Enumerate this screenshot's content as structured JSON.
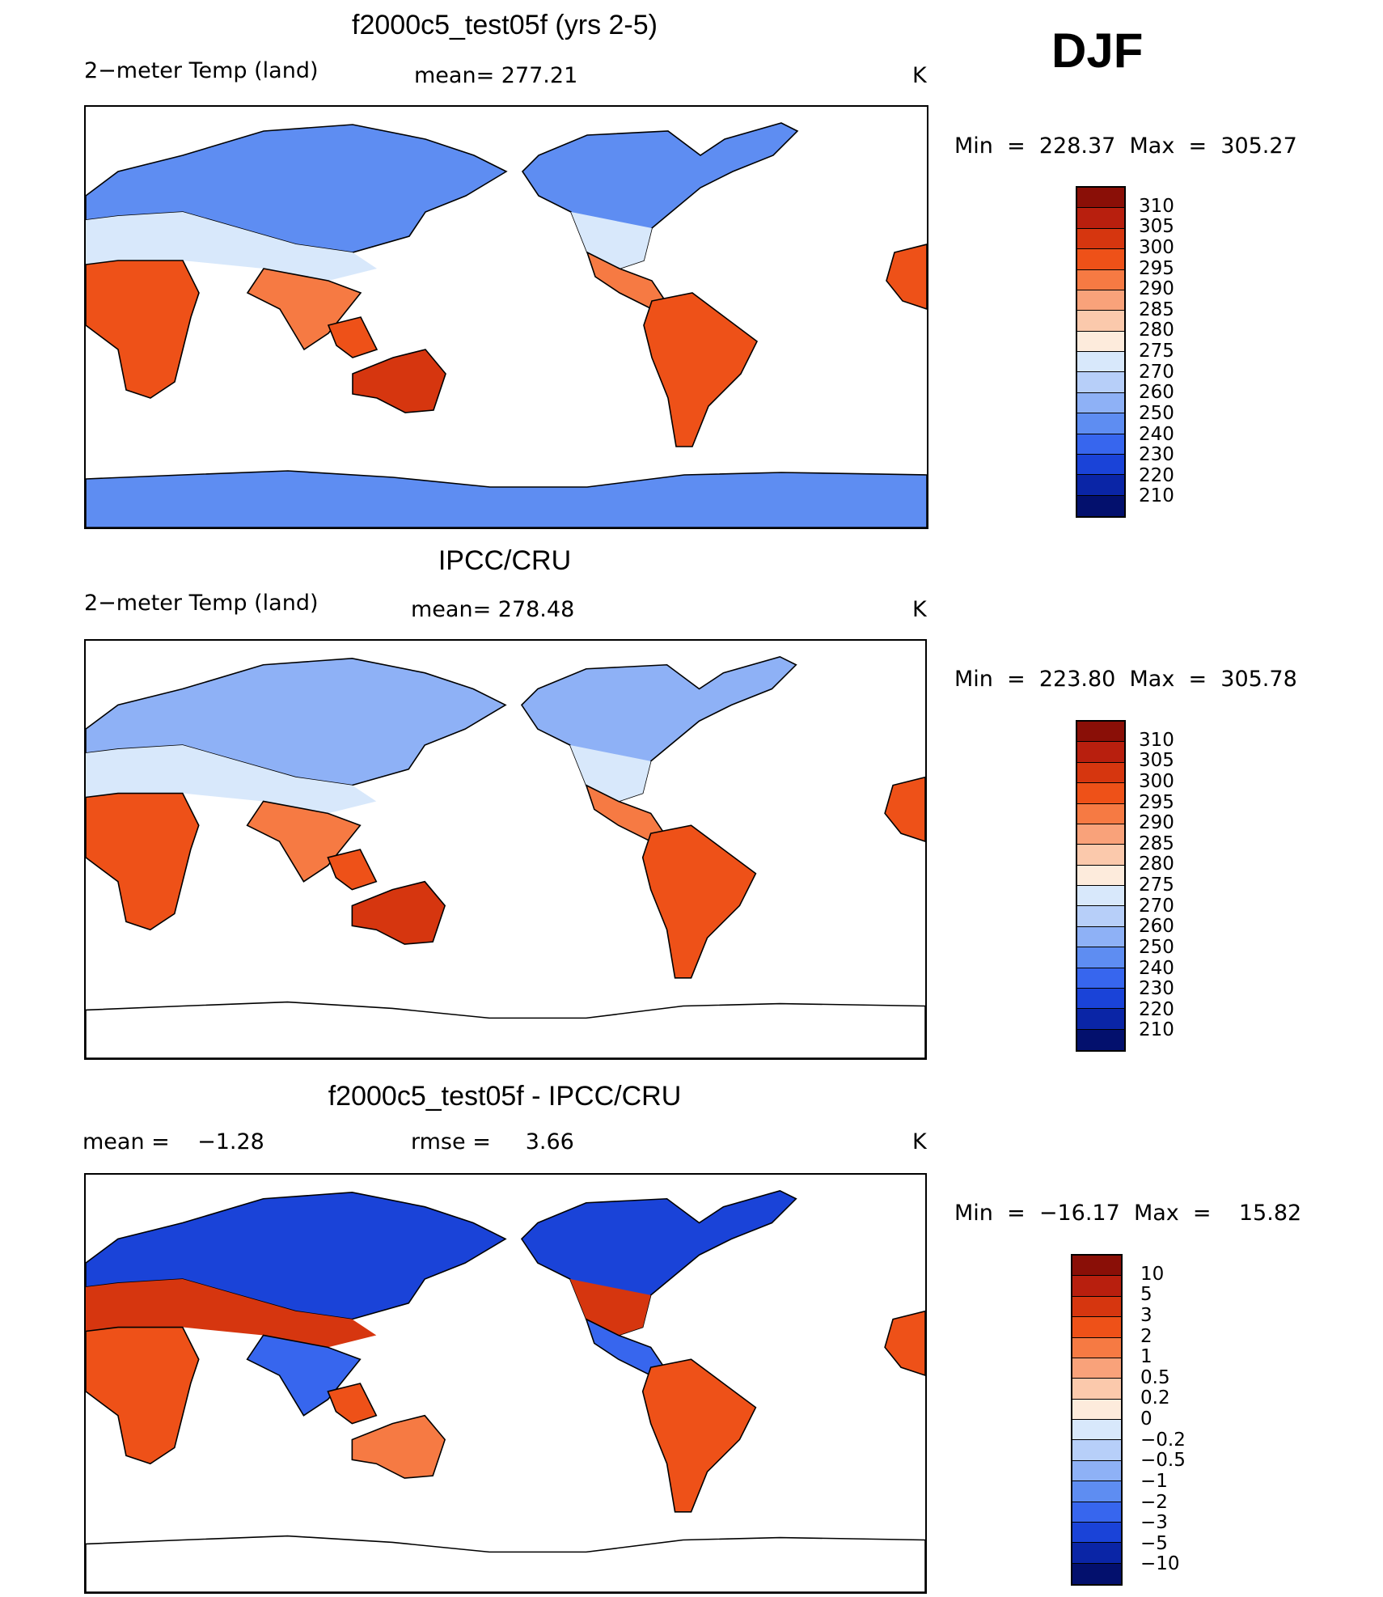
{
  "season": "DJF",
  "units_color": {
    "ocean": "#ffffff",
    "coast": "#000000"
  },
  "panels": [
    {
      "title": "f2000c5_test05f (yrs 2-5)",
      "left_label": "2−meter Temp (land)",
      "mid_label": "mean= 277.21",
      "units": "K",
      "minmax": "Min  =  228.37  Max  =  305.27",
      "colorbar": {
        "labels": [
          "310",
          "305",
          "300",
          "295",
          "290",
          "285",
          "280",
          "275",
          "270",
          "260",
          "250",
          "240",
          "230",
          "220",
          "210"
        ],
        "colors": [
          "#8a0f07",
          "#b81f0e",
          "#d6360f",
          "#ee5118",
          "#f67a43",
          "#f9a27a",
          "#fbc9ac",
          "#fdebdc",
          "#d8e8fb",
          "#b7cff9",
          "#8eb1f6",
          "#5e8df2",
          "#3766ee",
          "#1a43d8",
          "#0a25a6",
          "#03106d"
        ]
      },
      "map_fill": {
        "northern": "#5e8df2",
        "mid": "#d8e8fb",
        "subtropic": "#f67a43",
        "tropic": "#ee5118",
        "australia": "#d6360f",
        "antarctica": "#5e8df2"
      }
    },
    {
      "title": "IPCC/CRU",
      "left_label": "2−meter Temp (land)",
      "mid_label": "mean= 278.48",
      "units": "K",
      "minmax": "Min  =  223.80  Max  =  305.78",
      "colorbar": {
        "labels": [
          "310",
          "305",
          "300",
          "295",
          "290",
          "285",
          "280",
          "275",
          "270",
          "260",
          "250",
          "240",
          "230",
          "220",
          "210"
        ],
        "colors": [
          "#8a0f07",
          "#b81f0e",
          "#d6360f",
          "#ee5118",
          "#f67a43",
          "#f9a27a",
          "#fbc9ac",
          "#fdebdc",
          "#d8e8fb",
          "#b7cff9",
          "#8eb1f6",
          "#5e8df2",
          "#3766ee",
          "#1a43d8",
          "#0a25a6",
          "#03106d"
        ]
      },
      "map_fill": {
        "northern": "#8eb1f6",
        "mid": "#d8e8fb",
        "subtropic": "#f67a43",
        "tropic": "#ee5118",
        "australia": "#d6360f",
        "antarctica": "#ffffff"
      }
    },
    {
      "title": "f2000c5_test05f - IPCC/CRU",
      "left_label": "mean =    −1.28",
      "mid_label": "rmse =     3.66",
      "units": "K",
      "minmax": "Min  =  −16.17  Max  =    15.82",
      "colorbar": {
        "labels": [
          "10",
          "5",
          "3",
          "2",
          "1",
          "0.5",
          "0.2",
          "0",
          "−0.2",
          "−0.5",
          "−1",
          "−2",
          "−3",
          "−5",
          "−10"
        ],
        "colors": [
          "#8a0f07",
          "#b81f0e",
          "#d6360f",
          "#ee5118",
          "#f67a43",
          "#f9a27a",
          "#fbc9ac",
          "#fdebdc",
          "#d8e8fb",
          "#b7cff9",
          "#8eb1f6",
          "#5e8df2",
          "#3766ee",
          "#1a43d8",
          "#0a25a6",
          "#03106d"
        ]
      },
      "map_fill": {
        "northern": "#1a43d8",
        "mid": "#d6360f",
        "subtropic": "#3766ee",
        "tropic": "#ee5118",
        "australia": "#f67a43",
        "antarctica": "#ffffff"
      }
    }
  ]
}
